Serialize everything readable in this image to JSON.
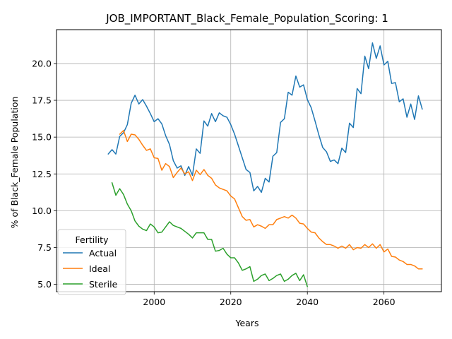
{
  "chart_data": {
    "type": "line",
    "title": "JOB_IMPORTANT_Black_Female_Population_Scoring: 1",
    "xlabel": "Years",
    "ylabel": "% of Black_Female Population",
    "xlim": [
      1974.5,
      2075
    ],
    "ylim": [
      4.5,
      22.3
    ],
    "xticks": [
      2000,
      2020,
      2040,
      2060
    ],
    "yticks": [
      5.0,
      7.5,
      10.0,
      12.5,
      15.0,
      17.5,
      20.0
    ],
    "grid": true,
    "legend": {
      "title": "Fertility",
      "placement": "lower-left"
    },
    "series": [
      {
        "name": "Actual",
        "color": "#1f77b4",
        "x": [
          1988,
          1989,
          1990,
          1991,
          1992,
          1993,
          1994,
          1995,
          1996,
          1997,
          1998,
          1999,
          2000,
          2001,
          2002,
          2003,
          2004,
          2005,
          2006,
          2007,
          2008,
          2009,
          2010,
          2011,
          2012,
          2013,
          2014,
          2015,
          2016,
          2017,
          2018,
          2019,
          2020,
          2021,
          2022,
          2023,
          2024,
          2025,
          2026,
          2027,
          2028,
          2029,
          2030,
          2031,
          2032,
          2033,
          2034,
          2035,
          2036,
          2037,
          2038,
          2039,
          2040,
          2041,
          2042,
          2043,
          2044,
          2045,
          2046,
          2047,
          2048,
          2049,
          2050,
          2051,
          2052,
          2053,
          2054,
          2055,
          2056,
          2057,
          2058,
          2059,
          2060,
          2061,
          2062,
          2063,
          2064,
          2065,
          2066,
          2067,
          2068,
          2069,
          2070
        ],
        "values": [
          13.85,
          14.15,
          13.85,
          15.05,
          15.3,
          15.85,
          17.3,
          17.85,
          17.25,
          17.55,
          17.1,
          16.6,
          16.05,
          16.25,
          15.9,
          15.1,
          14.5,
          13.4,
          12.9,
          13.05,
          12.4,
          13.0,
          12.4,
          14.2,
          13.9,
          16.1,
          15.75,
          16.6,
          16.05,
          16.65,
          16.45,
          16.35,
          15.85,
          15.2,
          14.4,
          13.6,
          12.8,
          12.6,
          11.35,
          11.65,
          11.25,
          12.2,
          11.95,
          13.7,
          13.95,
          16.0,
          16.25,
          18.05,
          17.85,
          19.15,
          18.4,
          18.55,
          17.55,
          17.0,
          16.1,
          15.15,
          14.3,
          14.0,
          13.35,
          13.45,
          13.2,
          14.25,
          13.95,
          15.95,
          15.65,
          18.3,
          17.95,
          20.5,
          19.65,
          21.4,
          20.35,
          21.2,
          19.9,
          20.15,
          18.65,
          18.7,
          17.4,
          17.6,
          16.35,
          17.25,
          16.2,
          17.8,
          16.9
        ]
      },
      {
        "name": "Ideal",
        "color": "#ff7f0e",
        "x": [
          1991,
          1992,
          1993,
          1994,
          1995,
          1996,
          1997,
          1998,
          1999,
          2000,
          2001,
          2002,
          2003,
          2004,
          2005,
          2006,
          2007,
          2008,
          2009,
          2010,
          2011,
          2012,
          2013,
          2014,
          2015,
          2016,
          2017,
          2018,
          2019,
          2020,
          2021,
          2022,
          2023,
          2024,
          2025,
          2026,
          2027,
          2028,
          2029,
          2030,
          2031,
          2032,
          2033,
          2034,
          2035,
          2036,
          2037,
          2038,
          2039,
          2040,
          2041,
          2042,
          2043,
          2044,
          2045,
          2046,
          2047,
          2048,
          2049,
          2050,
          2051,
          2052,
          2053,
          2054,
          2055,
          2056,
          2057,
          2058,
          2059,
          2060,
          2061,
          2062,
          2063,
          2064,
          2065,
          2066,
          2067,
          2068,
          2069,
          2070
        ],
        "values": [
          15.2,
          15.45,
          14.7,
          15.2,
          15.15,
          14.85,
          14.45,
          14.1,
          14.2,
          13.6,
          13.55,
          12.75,
          13.2,
          13.0,
          12.25,
          12.6,
          12.9,
          12.5,
          12.65,
          12.05,
          12.75,
          12.45,
          12.8,
          12.4,
          12.2,
          11.75,
          11.55,
          11.45,
          11.35,
          11.0,
          10.8,
          10.2,
          9.6,
          9.35,
          9.4,
          8.9,
          9.05,
          8.95,
          8.8,
          9.05,
          9.05,
          9.4,
          9.5,
          9.6,
          9.5,
          9.7,
          9.5,
          9.15,
          9.1,
          8.8,
          8.55,
          8.5,
          8.15,
          7.9,
          7.7,
          7.7,
          7.6,
          7.45,
          7.6,
          7.45,
          7.7,
          7.35,
          7.5,
          7.45,
          7.7,
          7.5,
          7.75,
          7.45,
          7.7,
          7.2,
          7.4,
          6.9,
          6.85,
          6.65,
          6.55,
          6.35,
          6.35,
          6.25,
          6.05,
          6.05
        ]
      },
      {
        "name": "Sterile",
        "color": "#2ca02c",
        "x": [
          1989,
          1990,
          1991,
          1992,
          1993,
          1994,
          1995,
          1996,
          1997,
          1998,
          1999,
          2000,
          2001,
          2002,
          2003,
          2004,
          2005,
          2006,
          2007,
          2008,
          2009,
          2010,
          2011,
          2012,
          2013,
          2014,
          2015,
          2016,
          2017,
          2018,
          2019,
          2020,
          2021,
          2022,
          2023,
          2024,
          2025,
          2026,
          2027,
          2028,
          2029,
          2030,
          2031,
          2032,
          2033,
          2034,
          2035,
          2036,
          2037,
          2038,
          2039,
          2040
        ],
        "values": [
          11.9,
          11.05,
          11.5,
          11.1,
          10.45,
          10.0,
          9.3,
          8.95,
          8.75,
          8.65,
          9.1,
          8.9,
          8.5,
          8.55,
          8.9,
          9.25,
          9.0,
          8.9,
          8.8,
          8.6,
          8.4,
          8.15,
          8.5,
          8.5,
          8.5,
          8.05,
          8.05,
          7.25,
          7.3,
          7.45,
          7.05,
          6.8,
          6.8,
          6.45,
          5.95,
          6.05,
          6.2,
          5.2,
          5.35,
          5.6,
          5.7,
          5.25,
          5.4,
          5.6,
          5.7,
          5.2,
          5.35,
          5.6,
          5.75,
          5.25,
          5.65,
          4.85
        ]
      }
    ]
  }
}
